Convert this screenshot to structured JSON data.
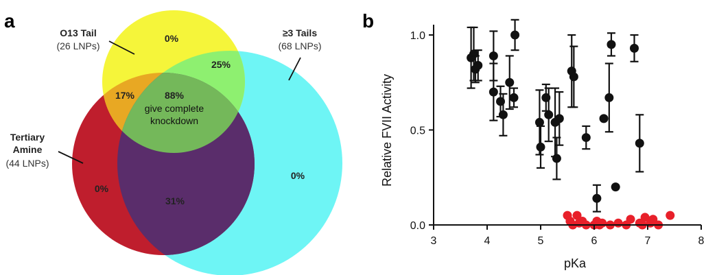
{
  "panel_a": {
    "letter": "a",
    "sets": [
      {
        "key": "o13",
        "title": "O13 Tail",
        "subtitle": "(26 LNPs)",
        "color": "#f5f53a"
      },
      {
        "key": "tails",
        "title": "≥3 Tails",
        "subtitle": "(68 LNPs)",
        "color": "#6ef5f5"
      },
      {
        "key": "amine",
        "title": "Tertiary",
        "title2": "Amine",
        "subtitle": "(44 LNPs)",
        "color": "#bf1e2d"
      }
    ],
    "overlap_colors": {
      "o13_amine": "#e8a823",
      "o13_tails": "#8ef070",
      "amine_tails": "#5a2d6b",
      "all": "#74b85a"
    },
    "regions": {
      "o13_only": "0%",
      "o13_tails": "25%",
      "o13_amine": "17%",
      "all_three": "88%",
      "amine_only": "0%",
      "amine_tails": "31%",
      "tails_only": "0%"
    },
    "center_note_1": "give complete",
    "center_note_2": "knockdown"
  },
  "panel_b": {
    "letter": "b",
    "chart_data": {
      "type": "scatter",
      "xlabel": "pKa",
      "ylabel": "Relative FVII Activity",
      "xlim": [
        3,
        8
      ],
      "ylim": [
        0,
        1.1
      ],
      "xticks": [
        "3",
        "4",
        "5",
        "6",
        "7",
        "8"
      ],
      "yticks": [
        "0.0",
        "0.5",
        "1.0"
      ],
      "series": [
        {
          "color": "#111111",
          "points": [
            {
              "x": 3.7,
              "y": 0.88,
              "err": 0.16
            },
            {
              "x": 3.75,
              "y": 0.9,
              "err": 0.14
            },
            {
              "x": 3.78,
              "y": 0.82,
              "err": 0.07
            },
            {
              "x": 3.83,
              "y": 0.84,
              "err": 0.08
            },
            {
              "x": 4.12,
              "y": 0.89,
              "err": 0.13
            },
            {
              "x": 4.12,
              "y": 0.7,
              "err": 0.15
            },
            {
              "x": 4.25,
              "y": 0.65,
              "err": 0.08
            },
            {
              "x": 4.3,
              "y": 0.58,
              "err": 0.11
            },
            {
              "x": 4.42,
              "y": 0.75,
              "err": 0.14
            },
            {
              "x": 4.5,
              "y": 0.67,
              "err": 0.05
            },
            {
              "x": 4.52,
              "y": 1.0,
              "err": 0.08
            },
            {
              "x": 4.98,
              "y": 0.54,
              "err": 0.17
            },
            {
              "x": 5.0,
              "y": 0.41,
              "err": 0.11
            },
            {
              "x": 5.1,
              "y": 0.67,
              "err": 0.07
            },
            {
              "x": 5.15,
              "y": 0.58,
              "err": 0.14
            },
            {
              "x": 5.27,
              "y": 0.54,
              "err": 0.18
            },
            {
              "x": 5.3,
              "y": 0.35,
              "err": 0.11
            },
            {
              "x": 5.35,
              "y": 0.56,
              "err": 0.14
            },
            {
              "x": 5.58,
              "y": 0.81,
              "err": 0.19
            },
            {
              "x": 5.62,
              "y": 0.78,
              "err": 0.16
            },
            {
              "x": 5.85,
              "y": 0.46,
              "err": 0.06
            },
            {
              "x": 6.05,
              "y": 0.14,
              "err": 0.07
            },
            {
              "x": 6.18,
              "y": 0.56,
              "err": 0.0
            },
            {
              "x": 6.28,
              "y": 0.67,
              "err": 0.18
            },
            {
              "x": 6.32,
              "y": 0.95,
              "err": 0.06
            },
            {
              "x": 6.4,
              "y": 0.2,
              "err": 0.0
            },
            {
              "x": 6.75,
              "y": 0.93,
              "err": 0.07
            },
            {
              "x": 6.85,
              "y": 0.43,
              "err": 0.15
            }
          ]
        },
        {
          "color": "#e8202a",
          "points": [
            {
              "x": 5.5,
              "y": 0.05
            },
            {
              "x": 5.55,
              "y": 0.02
            },
            {
              "x": 5.6,
              "y": 0.0
            },
            {
              "x": 5.68,
              "y": 0.05
            },
            {
              "x": 5.72,
              "y": 0.01
            },
            {
              "x": 5.78,
              "y": 0.02
            },
            {
              "x": 5.85,
              "y": 0.0
            },
            {
              "x": 6.0,
              "y": 0.0
            },
            {
              "x": 6.05,
              "y": 0.02
            },
            {
              "x": 6.1,
              "y": 0.0
            },
            {
              "x": 6.15,
              "y": 0.01
            },
            {
              "x": 6.3,
              "y": 0.0
            },
            {
              "x": 6.45,
              "y": 0.01
            },
            {
              "x": 6.6,
              "y": 0.0
            },
            {
              "x": 6.68,
              "y": 0.03
            },
            {
              "x": 6.85,
              "y": 0.01
            },
            {
              "x": 6.9,
              "y": 0.0
            },
            {
              "x": 6.95,
              "y": 0.04
            },
            {
              "x": 7.05,
              "y": 0.01
            },
            {
              "x": 7.1,
              "y": 0.03
            },
            {
              "x": 7.2,
              "y": 0.0
            },
            {
              "x": 7.42,
              "y": 0.05
            }
          ]
        }
      ]
    }
  }
}
